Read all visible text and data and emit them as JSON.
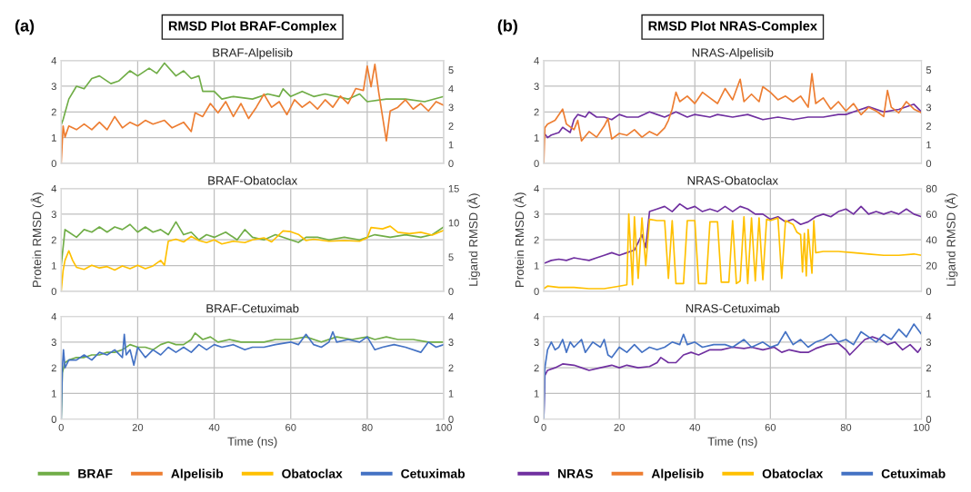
{
  "chart_data": [
    {
      "type": "line",
      "title": "BRAF-Alpelisib",
      "annotations": [
        "(a)",
        "RMSD Plot BRAF-Complex"
      ],
      "xlim": [
        0,
        100
      ],
      "xticks": [
        0,
        20,
        40,
        60,
        80,
        100
      ],
      "ylim": [
        0,
        4
      ],
      "yticks": [
        0,
        1,
        2,
        3,
        4
      ],
      "y2lim": [
        0,
        5.5
      ],
      "y2ticks": [
        0,
        1,
        2,
        3,
        4,
        5
      ],
      "grid": true,
      "legend": "bottom",
      "tick_labels": "y",
      "series": [
        {
          "name": "BRAF",
          "color": "#70ad47",
          "x": [
            0,
            0.5,
            2,
            4,
            6,
            8,
            10,
            13,
            15,
            18,
            20,
            23,
            25,
            27,
            30,
            32,
            34,
            36,
            37,
            40,
            42,
            45,
            50,
            54,
            57,
            58,
            60,
            63,
            66,
            69,
            72,
            75,
            78,
            80,
            85,
            90,
            95,
            100
          ],
          "values": [
            1.5,
            1.7,
            2.5,
            3.0,
            2.9,
            3.3,
            3.4,
            3.1,
            3.2,
            3.6,
            3.4,
            3.7,
            3.5,
            3.9,
            3.4,
            3.6,
            3.3,
            3.4,
            2.8,
            2.8,
            2.5,
            2.6,
            2.5,
            2.7,
            2.6,
            2.9,
            2.6,
            2.8,
            2.6,
            2.7,
            2.6,
            2.5,
            2.7,
            2.4,
            2.5,
            2.5,
            2.4,
            2.6
          ]
        },
        {
          "name": "Alpelisib",
          "color": "#ed7d31",
          "axis": "y2",
          "x": [
            0,
            0.5,
            1,
            2,
            4,
            6,
            8,
            10,
            12,
            14,
            16,
            18,
            20,
            22,
            24,
            27,
            29,
            32,
            34,
            35,
            37,
            39,
            41,
            43,
            45,
            47,
            49,
            51,
            53,
            55,
            57,
            59,
            61,
            63,
            65,
            67,
            69,
            71,
            73,
            75,
            77,
            79,
            80,
            81,
            82,
            83,
            84,
            85,
            86,
            88,
            90,
            92,
            94,
            96,
            98,
            100
          ],
          "values": [
            0,
            2.0,
            1.4,
            2.0,
            1.8,
            2.1,
            1.8,
            2.2,
            1.8,
            2.5,
            1.9,
            2.2,
            2.0,
            2.3,
            2.1,
            2.3,
            1.9,
            2.2,
            1.7,
            2.7,
            2.5,
            3.2,
            2.7,
            3.3,
            2.5,
            3.2,
            2.4,
            3.0,
            3.7,
            3.0,
            3.3,
            2.6,
            3.4,
            3.0,
            3.3,
            2.9,
            3.4,
            3.0,
            3.6,
            3.2,
            4.0,
            3.9,
            5.2,
            4.1,
            5.3,
            3.8,
            2.5,
            1.2,
            2.8,
            3.0,
            3.4,
            2.9,
            3.2,
            2.8,
            3.3,
            3.1
          ]
        }
      ]
    },
    {
      "type": "line",
      "title": "BRAF-Obatoclax",
      "ylabel": "Protein RMSD (Å)",
      "y2label": "Ligand RMSD (Å)",
      "xlim": [
        0,
        100
      ],
      "xticks": [
        0,
        20,
        40,
        60,
        80,
        100
      ],
      "ylim": [
        0,
        4
      ],
      "yticks": [
        0,
        1,
        2,
        3,
        4
      ],
      "y2lim": [
        0,
        15
      ],
      "y2ticks": [
        0,
        5,
        10,
        15
      ],
      "grid": true,
      "tick_labels": "y",
      "series": [
        {
          "name": "BRAF",
          "color": "#70ad47",
          "x": [
            0,
            1,
            2,
            4,
            6,
            8,
            10,
            12,
            14,
            16,
            18,
            20,
            22,
            24,
            26,
            28,
            30,
            32,
            34,
            36,
            38,
            40,
            43,
            46,
            48,
            50,
            53,
            56,
            60,
            62,
            64,
            67,
            70,
            74,
            78,
            82,
            86,
            90,
            94,
            97,
            100
          ],
          "values": [
            1.0,
            2.4,
            2.3,
            2.1,
            2.4,
            2.3,
            2.5,
            2.3,
            2.5,
            2.4,
            2.6,
            2.3,
            2.5,
            2.3,
            2.4,
            2.2,
            2.7,
            2.2,
            2.3,
            2.0,
            2.2,
            2.1,
            2.3,
            2.0,
            2.4,
            2.1,
            2.0,
            2.2,
            2.0,
            1.9,
            2.1,
            2.1,
            2.0,
            2.1,
            2.0,
            2.2,
            2.1,
            2.2,
            2.1,
            2.2,
            2.5
          ]
        },
        {
          "name": "Obatoclax",
          "color": "#ffc000",
          "axis": "y2",
          "x": [
            0,
            0.5,
            1,
            2,
            3,
            4,
            6,
            8,
            10,
            12,
            14,
            16,
            18,
            20,
            22,
            24,
            26,
            27,
            28,
            30,
            32,
            34,
            36,
            38,
            40,
            42,
            45,
            48,
            50,
            53,
            55,
            58,
            60,
            62,
            64,
            66,
            70,
            74,
            78,
            80,
            81,
            84,
            86,
            88,
            91,
            94,
            97,
            100
          ],
          "values": [
            0,
            3,
            4.5,
            5.9,
            4.5,
            3.5,
            3.2,
            3.8,
            3.4,
            3.6,
            3.1,
            3.7,
            3.3,
            3.8,
            3.3,
            3.7,
            4.5,
            3.8,
            7.3,
            7.6,
            7.2,
            8.0,
            7.4,
            7.1,
            7.5,
            6.9,
            7.3,
            7.1,
            7.5,
            7.8,
            7.2,
            8.8,
            8.7,
            8.3,
            7.4,
            7.6,
            7.3,
            7.4,
            7.3,
            7.8,
            9.3,
            9.1,
            9.5,
            8.6,
            8.4,
            8.6,
            8.2,
            8.9
          ]
        }
      ]
    },
    {
      "type": "line",
      "title": "BRAF-Cetuximab",
      "xlabel": "Time (ns)",
      "xlim": [
        0,
        100
      ],
      "xticks": [
        0,
        20,
        40,
        60,
        80,
        100
      ],
      "ylim": [
        0,
        4
      ],
      "yticks": [
        0,
        1,
        2,
        3,
        4
      ],
      "y2lim": [
        0,
        4
      ],
      "y2ticks": [
        0,
        1,
        2,
        3,
        4
      ],
      "grid": true,
      "series": [
        {
          "name": "BRAF",
          "color": "#70ad47",
          "x": [
            0,
            0.3,
            1,
            2,
            4,
            6,
            8,
            10,
            12,
            14,
            16,
            18,
            20,
            22,
            24,
            26,
            28,
            30,
            32,
            34,
            35,
            37,
            39,
            41,
            44,
            47,
            50,
            53,
            56,
            60,
            64,
            68,
            72,
            76,
            80,
            82,
            85,
            88,
            92,
            96,
            100
          ],
          "values": [
            0,
            1.8,
            2.2,
            2.3,
            2.4,
            2.4,
            2.5,
            2.5,
            2.6,
            2.6,
            2.7,
            2.9,
            2.8,
            2.8,
            2.7,
            2.9,
            3.0,
            2.9,
            2.9,
            3.1,
            3.35,
            3.1,
            3.2,
            3.0,
            3.1,
            3.0,
            3.0,
            3.0,
            3.1,
            3.1,
            3.2,
            3.0,
            3.2,
            3.1,
            3.2,
            3.1,
            3.2,
            3.1,
            3.1,
            3.0,
            3.0
          ]
        },
        {
          "name": "Cetuximab",
          "color": "#4472c4",
          "axis": "y2",
          "x": [
            0,
            0.3,
            0.6,
            1,
            2,
            4,
            6,
            8,
            10,
            12,
            14,
            16,
            16.5,
            17,
            18,
            19,
            20,
            22,
            24,
            26,
            28,
            30,
            32,
            34,
            36,
            38,
            40,
            42,
            45,
            48,
            50,
            53,
            56,
            60,
            62,
            64,
            66,
            68,
            70,
            71,
            72,
            75,
            78,
            80,
            82,
            84,
            87,
            90,
            94,
            96,
            98,
            100
          ],
          "values": [
            0,
            2.0,
            2.7,
            2.0,
            2.3,
            2.3,
            2.5,
            2.3,
            2.6,
            2.5,
            2.7,
            2.4,
            3.3,
            2.5,
            2.7,
            2.1,
            2.8,
            2.4,
            2.7,
            2.5,
            2.8,
            2.6,
            2.8,
            2.6,
            2.9,
            2.7,
            2.9,
            2.8,
            2.9,
            2.7,
            2.8,
            2.8,
            2.9,
            3.0,
            2.9,
            3.3,
            2.9,
            2.8,
            3.0,
            3.4,
            3.0,
            3.1,
            3.0,
            3.2,
            2.7,
            2.8,
            2.9,
            2.8,
            2.6,
            3.0,
            2.8,
            2.9
          ]
        }
      ]
    },
    {
      "type": "line",
      "title": "NRAS-Alpelisib",
      "annotations": [
        "(b)",
        "RMSD Plot NRAS-Complex"
      ],
      "xlim": [
        0,
        100
      ],
      "xticks": [
        0,
        20,
        40,
        60,
        80,
        100
      ],
      "ylim": [
        0,
        4
      ],
      "yticks": [
        0,
        1,
        2,
        3,
        4
      ],
      "y2lim": [
        0,
        5.5
      ],
      "y2ticks": [
        0,
        1,
        2,
        3,
        4,
        5
      ],
      "grid": true,
      "legend": "bottom",
      "tick_labels": "y",
      "series": [
        {
          "name": "NRAS",
          "color": "#7030a0",
          "x": [
            0,
            1,
            2,
            4,
            5,
            6,
            7,
            8,
            9,
            11,
            12,
            14,
            16,
            18,
            20,
            22,
            25,
            28,
            30,
            32,
            35,
            38,
            40,
            44,
            46,
            50,
            54,
            58,
            62,
            66,
            70,
            74,
            78,
            80,
            82,
            86,
            90,
            94,
            98,
            100
          ],
          "values": [
            1.2,
            1.0,
            1.1,
            1.2,
            1.4,
            1.3,
            1.2,
            1.7,
            1.9,
            1.8,
            2.0,
            1.8,
            1.8,
            1.7,
            1.9,
            1.8,
            1.8,
            2.0,
            1.9,
            1.8,
            2.0,
            1.8,
            1.9,
            1.8,
            1.9,
            1.8,
            1.9,
            1.7,
            1.8,
            1.7,
            1.8,
            1.8,
            1.9,
            1.9,
            2.0,
            2.2,
            2.0,
            2.1,
            2.3,
            2.0
          ]
        },
        {
          "name": "Alpelisib",
          "color": "#ed7d31",
          "axis": "y2",
          "x": [
            0,
            0.3,
            1,
            3,
            5,
            6,
            8,
            9,
            10,
            12,
            14,
            16,
            17,
            18,
            20,
            22,
            24,
            26,
            28,
            30,
            32,
            33,
            34,
            35,
            36,
            38,
            40,
            42,
            44,
            46,
            48,
            50,
            52,
            53,
            55,
            57,
            58,
            60,
            62,
            64,
            66,
            68,
            70,
            71,
            72,
            74,
            76,
            78,
            80,
            82,
            84,
            86,
            88,
            90,
            91,
            92,
            94,
            96,
            98,
            100
          ],
          "values": [
            0,
            1.9,
            2.1,
            2.3,
            2.9,
            2.1,
            1.8,
            2.3,
            1.2,
            1.7,
            1.4,
            2.0,
            2.4,
            1.3,
            1.6,
            1.5,
            1.8,
            1.4,
            1.7,
            1.5,
            1.9,
            2.3,
            2.9,
            3.8,
            3.3,
            3.6,
            3.2,
            3.8,
            3.5,
            3.2,
            4.0,
            3.4,
            4.5,
            3.3,
            3.7,
            3.3,
            4.1,
            3.8,
            3.4,
            3.6,
            3.3,
            3.6,
            3.0,
            4.8,
            3.2,
            3.5,
            2.9,
            3.3,
            2.8,
            3.2,
            2.6,
            3.0,
            2.8,
            2.5,
            3.9,
            3.0,
            2.7,
            3.3,
            2.9,
            2.7
          ]
        }
      ]
    },
    {
      "type": "line",
      "title": "NRAS-Obatoclax",
      "ylabel": "Protein RMSD (Å)",
      "y2label": "Ligand RMSD (Å)",
      "xlim": [
        0,
        100
      ],
      "xticks": [
        0,
        20,
        40,
        60,
        80,
        100
      ],
      "ylim": [
        0,
        4
      ],
      "yticks": [
        0,
        1,
        2,
        3,
        4
      ],
      "y2lim": [
        0,
        80
      ],
      "y2ticks": [
        0,
        20,
        40,
        60,
        80
      ],
      "grid": true,
      "tick_labels": "y",
      "series": [
        {
          "name": "NRAS",
          "color": "#7030a0",
          "x": [
            0.3,
            2,
            4,
            6,
            8,
            10,
            12,
            14,
            16,
            18,
            20,
            22,
            24,
            26,
            27,
            28,
            30,
            32,
            34,
            36,
            38,
            40,
            42,
            44,
            46,
            48,
            50,
            52,
            54,
            56,
            58,
            60,
            62,
            64,
            66,
            68,
            70,
            72,
            74,
            76,
            78,
            80,
            82,
            84,
            86,
            88,
            90,
            92,
            94,
            96,
            98,
            100
          ],
          "values": [
            1.1,
            1.2,
            1.25,
            1.2,
            1.3,
            1.25,
            1.2,
            1.3,
            1.4,
            1.5,
            1.4,
            1.5,
            1.6,
            2.2,
            1.7,
            3.1,
            3.2,
            3.3,
            3.1,
            3.4,
            3.2,
            3.3,
            3.1,
            3.2,
            3.1,
            3.3,
            3.1,
            3.3,
            3.2,
            3.0,
            3.0,
            2.8,
            2.9,
            2.7,
            2.8,
            2.6,
            2.7,
            2.9,
            3.0,
            2.9,
            3.1,
            3.2,
            3.0,
            3.3,
            3.0,
            3.1,
            3.0,
            3.1,
            3.0,
            3.2,
            3.0,
            2.9
          ]
        },
        {
          "name": "Obatoclax",
          "color": "#ffc000",
          "axis": "y2",
          "x": [
            0,
            1,
            4,
            8,
            12,
            16,
            20,
            22,
            22.5,
            23.5,
            24,
            25,
            26,
            27,
            28,
            30,
            32,
            33,
            34,
            35,
            37,
            38,
            40,
            41,
            43,
            44,
            46,
            47,
            49,
            50,
            51,
            52,
            53,
            54,
            55,
            56,
            57,
            58,
            59,
            60,
            62,
            63,
            64,
            66,
            67,
            68,
            68.5,
            69,
            69.5,
            70,
            71,
            71.5,
            72,
            74,
            78,
            82,
            86,
            90,
            94,
            98,
            100
          ],
          "values": [
            2,
            4,
            3,
            3,
            2,
            2,
            4,
            5,
            60,
            5,
            58,
            10,
            57,
            20,
            56,
            55,
            55,
            10,
            55,
            6,
            6,
            55,
            55,
            6,
            6,
            54,
            54,
            7,
            7,
            55,
            6,
            8,
            58,
            6,
            57,
            8,
            57,
            9,
            56,
            55,
            57,
            10,
            55,
            52,
            46,
            44,
            15,
            45,
            12,
            48,
            14,
            55,
            30,
            31,
            31,
            30,
            29,
            28,
            28,
            29,
            28
          ]
        }
      ]
    },
    {
      "type": "line",
      "title": "NRAS-Cetuximab",
      "xlabel": "Time (ns)",
      "xlim": [
        0,
        100
      ],
      "xticks": [
        0,
        20,
        40,
        60,
        80,
        100
      ],
      "ylim": [
        0,
        4
      ],
      "yticks": [
        0,
        1,
        2,
        3,
        4
      ],
      "y2lim": [
        0,
        4
      ],
      "y2ticks": [
        0,
        1,
        2,
        3,
        4
      ],
      "grid": true,
      "series": [
        {
          "name": "NRAS",
          "color": "#7030a0",
          "x": [
            0,
            0.3,
            1,
            3,
            5,
            8,
            10,
            12,
            15,
            18,
            20,
            22,
            25,
            28,
            30,
            31,
            33,
            35,
            37,
            39,
            41,
            44,
            47,
            50,
            53,
            55,
            58,
            61,
            63,
            65,
            68,
            70,
            72,
            75,
            78,
            80,
            81,
            83,
            85,
            87,
            89,
            91,
            93,
            95,
            97,
            99,
            100
          ],
          "values": [
            0,
            1.7,
            1.9,
            2.0,
            2.15,
            2.1,
            2.0,
            1.9,
            2.0,
            2.1,
            2.0,
            2.1,
            2.0,
            2.05,
            2.2,
            2.4,
            2.2,
            2.2,
            2.5,
            2.6,
            2.5,
            2.7,
            2.7,
            2.8,
            2.75,
            2.8,
            2.7,
            2.8,
            2.6,
            2.7,
            2.6,
            2.6,
            2.75,
            2.9,
            2.95,
            2.7,
            2.5,
            2.8,
            3.1,
            3.2,
            3.1,
            2.9,
            3.0,
            2.7,
            2.9,
            2.6,
            2.8
          ]
        },
        {
          "name": "Cetuximab",
          "color": "#4472c4",
          "axis": "y2",
          "x": [
            0,
            0.3,
            1,
            2,
            3,
            4,
            5,
            6,
            7,
            8,
            10,
            11,
            13,
            15,
            16,
            17,
            18,
            20,
            22,
            24,
            26,
            28,
            30,
            32,
            34,
            36,
            37,
            38,
            40,
            42,
            45,
            48,
            50,
            53,
            55,
            58,
            60,
            62,
            64,
            66,
            68,
            70,
            72,
            74,
            76,
            78,
            80,
            82,
            84,
            86,
            88,
            90,
            92,
            94,
            96,
            98,
            100
          ],
          "values": [
            0,
            2.0,
            2.7,
            3.0,
            2.7,
            2.8,
            3.1,
            2.6,
            3.0,
            2.8,
            3.1,
            2.6,
            3.0,
            2.8,
            3.1,
            2.5,
            2.4,
            2.8,
            2.6,
            2.9,
            2.6,
            2.8,
            2.7,
            2.8,
            3.0,
            2.9,
            3.3,
            2.9,
            3.0,
            2.8,
            2.9,
            2.9,
            2.8,
            3.1,
            2.8,
            3.0,
            2.8,
            2.9,
            3.4,
            2.9,
            3.1,
            2.8,
            3.0,
            3.1,
            3.3,
            3.0,
            3.1,
            2.9,
            3.4,
            3.2,
            3.0,
            3.3,
            3.1,
            3.5,
            3.2,
            3.7,
            3.3
          ]
        }
      ]
    }
  ]
}
